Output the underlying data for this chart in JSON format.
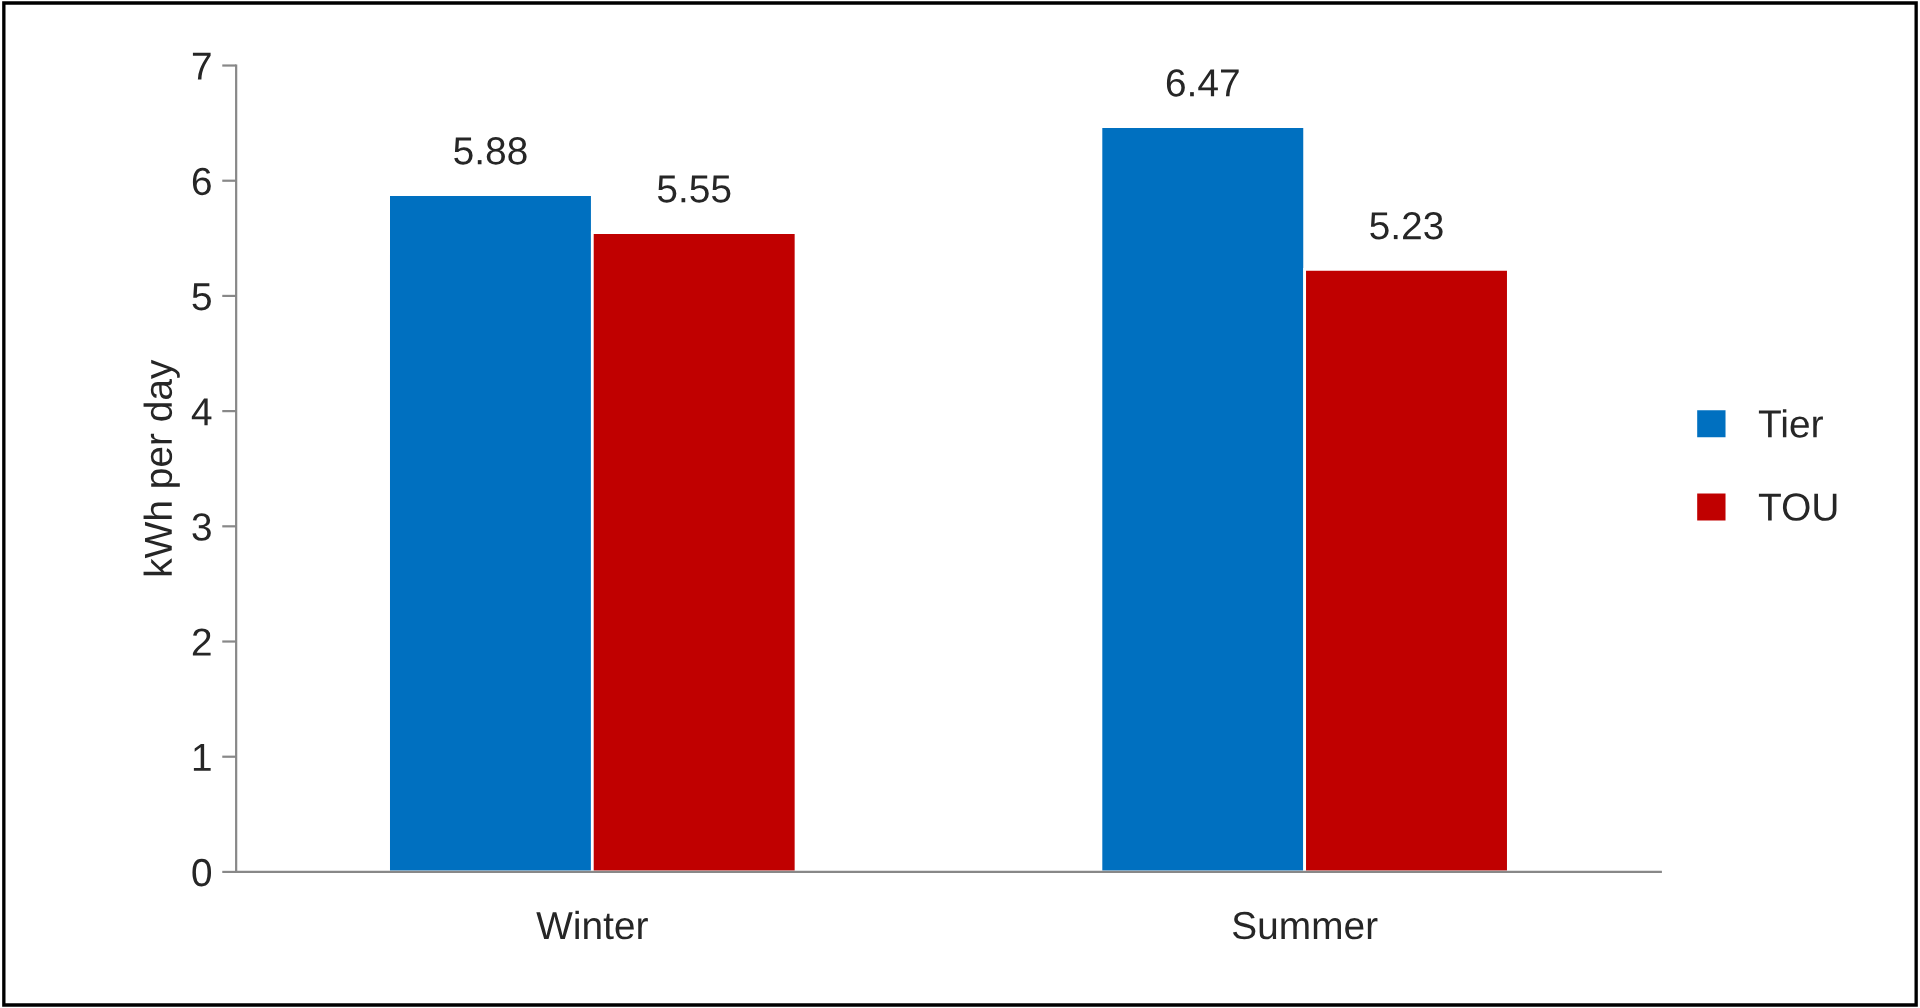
{
  "chart_data": {
    "type": "bar",
    "ylabel": "kWh per day",
    "categories": [
      "Winter",
      "Summer"
    ],
    "series": [
      {
        "name": "Tier",
        "color": "#0070c0",
        "values": [
          5.88,
          6.47
        ]
      },
      {
        "name": "TOU",
        "color": "#c00000",
        "values": [
          5.55,
          5.23
        ]
      }
    ],
    "ylim": [
      0,
      7
    ],
    "yticks": [
      0,
      1,
      2,
      3,
      4,
      5,
      6,
      7
    ],
    "grid": false,
    "legend": "right",
    "data_labels": true
  }
}
